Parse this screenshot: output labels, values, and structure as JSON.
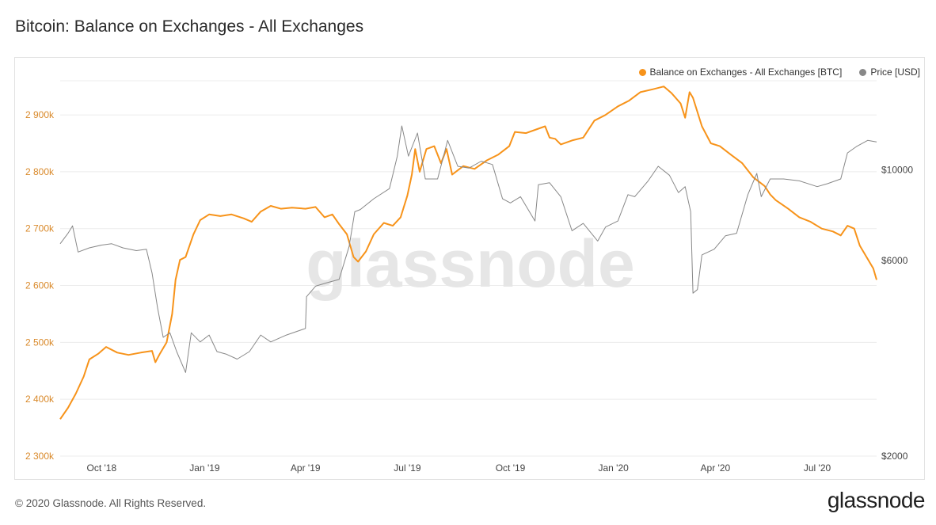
{
  "title": "Bitcoin: Balance on Exchanges - All Exchanges",
  "footer": {
    "copyright": "© 2020 Glassnode. All Rights Reserved.",
    "logo_text": "glassnode"
  },
  "watermark": "glassnode",
  "colors": {
    "balance": "#f7931a",
    "price": "#888888",
    "grid": "#ececec",
    "left_axis_text": "#d9892a",
    "right_axis_text": "#444444",
    "watermark": "#e6e6e6"
  },
  "chart_data": {
    "type": "line",
    "grid": true,
    "legend_position": "top-right",
    "x_range": [
      "2018-08-25",
      "2020-08-23"
    ],
    "x_ticks": [
      {
        "date": "2018-10-01",
        "label": "Oct '18"
      },
      {
        "date": "2019-01-01",
        "label": "Jan '19"
      },
      {
        "date": "2019-04-01",
        "label": "Apr '19"
      },
      {
        "date": "2019-07-01",
        "label": "Jul '19"
      },
      {
        "date": "2019-10-01",
        "label": "Oct '19"
      },
      {
        "date": "2020-01-01",
        "label": "Jan '20"
      },
      {
        "date": "2020-04-01",
        "label": "Apr '20"
      },
      {
        "date": "2020-07-01",
        "label": "Jul '20"
      }
    ],
    "y_left": {
      "range": [
        2300000,
        2960000
      ],
      "ticks": [
        {
          "value": 2300000,
          "label": "2 300k"
        },
        {
          "value": 2400000,
          "label": "2 400k"
        },
        {
          "value": 2500000,
          "label": "2 500k"
        },
        {
          "value": 2600000,
          "label": "2 600k"
        },
        {
          "value": 2700000,
          "label": "2 700k"
        },
        {
          "value": 2800000,
          "label": "2 800k"
        },
        {
          "value": 2900000,
          "label": "2 900k"
        }
      ]
    },
    "y_right": {
      "scale": "log",
      "range": [
        2000,
        16500
      ],
      "ticks": [
        {
          "value": 2000,
          "label": "$2000"
        },
        {
          "value": 6000,
          "label": "$6000"
        },
        {
          "value": 10000,
          "label": "$10000"
        }
      ]
    },
    "series": [
      {
        "name": "Balance on Exchanges - All Exchanges [BTC]",
        "axis": "left",
        "color": "#f7931a",
        "points": [
          [
            "2018-08-25",
            2365000
          ],
          [
            "2018-09-01",
            2385000
          ],
          [
            "2018-09-08",
            2410000
          ],
          [
            "2018-09-15",
            2440000
          ],
          [
            "2018-09-20",
            2470000
          ],
          [
            "2018-09-28",
            2480000
          ],
          [
            "2018-10-05",
            2492000
          ],
          [
            "2018-10-15",
            2482000
          ],
          [
            "2018-10-25",
            2478000
          ],
          [
            "2018-11-05",
            2482000
          ],
          [
            "2018-11-15",
            2485000
          ],
          [
            "2018-11-18",
            2465000
          ],
          [
            "2018-11-22",
            2480000
          ],
          [
            "2018-11-28",
            2500000
          ],
          [
            "2018-12-03",
            2550000
          ],
          [
            "2018-12-06",
            2610000
          ],
          [
            "2018-12-10",
            2645000
          ],
          [
            "2018-12-15",
            2650000
          ],
          [
            "2018-12-22",
            2690000
          ],
          [
            "2018-12-28",
            2715000
          ],
          [
            "2019-01-05",
            2725000
          ],
          [
            "2019-01-15",
            2722000
          ],
          [
            "2019-01-25",
            2725000
          ],
          [
            "2019-02-05",
            2718000
          ],
          [
            "2019-02-12",
            2712000
          ],
          [
            "2019-02-20",
            2730000
          ],
          [
            "2019-03-01",
            2740000
          ],
          [
            "2019-03-10",
            2735000
          ],
          [
            "2019-03-20",
            2737000
          ],
          [
            "2019-04-01",
            2735000
          ],
          [
            "2019-04-10",
            2738000
          ],
          [
            "2019-04-18",
            2720000
          ],
          [
            "2019-04-25",
            2725000
          ],
          [
            "2019-05-01",
            2708000
          ],
          [
            "2019-05-08",
            2690000
          ],
          [
            "2019-05-14",
            2650000
          ],
          [
            "2019-05-18",
            2642000
          ],
          [
            "2019-05-25",
            2660000
          ],
          [
            "2019-06-01",
            2690000
          ],
          [
            "2019-06-10",
            2710000
          ],
          [
            "2019-06-18",
            2705000
          ],
          [
            "2019-06-25",
            2720000
          ],
          [
            "2019-07-01",
            2758000
          ],
          [
            "2019-07-05",
            2795000
          ],
          [
            "2019-07-08",
            2840000
          ],
          [
            "2019-07-12",
            2800000
          ],
          [
            "2019-07-18",
            2840000
          ],
          [
            "2019-07-25",
            2845000
          ],
          [
            "2019-07-31",
            2815000
          ],
          [
            "2019-08-05",
            2840000
          ],
          [
            "2019-08-10",
            2795000
          ],
          [
            "2019-08-20",
            2810000
          ],
          [
            "2019-08-30",
            2805000
          ],
          [
            "2019-09-10",
            2820000
          ],
          [
            "2019-09-20",
            2830000
          ],
          [
            "2019-09-30",
            2845000
          ],
          [
            "2019-10-05",
            2870000
          ],
          [
            "2019-10-15",
            2868000
          ],
          [
            "2019-10-25",
            2875000
          ],
          [
            "2019-11-01",
            2880000
          ],
          [
            "2019-11-05",
            2860000
          ],
          [
            "2019-11-10",
            2858000
          ],
          [
            "2019-11-15",
            2848000
          ],
          [
            "2019-11-25",
            2855000
          ],
          [
            "2019-12-05",
            2860000
          ],
          [
            "2019-12-15",
            2890000
          ],
          [
            "2019-12-25",
            2900000
          ],
          [
            "2020-01-05",
            2915000
          ],
          [
            "2020-01-15",
            2925000
          ],
          [
            "2020-01-25",
            2940000
          ],
          [
            "2020-02-05",
            2945000
          ],
          [
            "2020-02-15",
            2950000
          ],
          [
            "2020-02-22",
            2938000
          ],
          [
            "2020-03-01",
            2920000
          ],
          [
            "2020-03-05",
            2895000
          ],
          [
            "2020-03-09",
            2940000
          ],
          [
            "2020-03-12",
            2930000
          ],
          [
            "2020-03-20",
            2880000
          ],
          [
            "2020-03-28",
            2850000
          ],
          [
            "2020-04-05",
            2845000
          ],
          [
            "2020-04-15",
            2830000
          ],
          [
            "2020-04-25",
            2815000
          ],
          [
            "2020-05-05",
            2790000
          ],
          [
            "2020-05-15",
            2775000
          ],
          [
            "2020-05-20",
            2760000
          ],
          [
            "2020-05-25",
            2750000
          ],
          [
            "2020-06-05",
            2735000
          ],
          [
            "2020-06-15",
            2720000
          ],
          [
            "2020-06-25",
            2712000
          ],
          [
            "2020-07-05",
            2700000
          ],
          [
            "2020-07-15",
            2695000
          ],
          [
            "2020-07-22",
            2688000
          ],
          [
            "2020-07-28",
            2705000
          ],
          [
            "2020-08-03",
            2700000
          ],
          [
            "2020-08-08",
            2670000
          ],
          [
            "2020-08-14",
            2650000
          ],
          [
            "2020-08-20",
            2630000
          ],
          [
            "2020-08-23",
            2610000
          ]
        ]
      },
      {
        "name": "Price [USD]",
        "axis": "right",
        "color": "#888888",
        "points": [
          [
            "2018-08-25",
            6600
          ],
          [
            "2018-09-01",
            7000
          ],
          [
            "2018-09-05",
            7300
          ],
          [
            "2018-09-10",
            6300
          ],
          [
            "2018-09-20",
            6450
          ],
          [
            "2018-10-01",
            6550
          ],
          [
            "2018-10-10",
            6600
          ],
          [
            "2018-10-20",
            6450
          ],
          [
            "2018-11-01",
            6350
          ],
          [
            "2018-11-10",
            6400
          ],
          [
            "2018-11-15",
            5600
          ],
          [
            "2018-11-20",
            4600
          ],
          [
            "2018-11-25",
            3900
          ],
          [
            "2018-12-01",
            4000
          ],
          [
            "2018-12-07",
            3600
          ],
          [
            "2018-12-15",
            3200
          ],
          [
            "2018-12-20",
            4000
          ],
          [
            "2018-12-28",
            3800
          ],
          [
            "2019-01-05",
            3950
          ],
          [
            "2019-01-12",
            3600
          ],
          [
            "2019-01-20",
            3550
          ],
          [
            "2019-01-30",
            3450
          ],
          [
            "2019-02-10",
            3600
          ],
          [
            "2019-02-20",
            3950
          ],
          [
            "2019-03-01",
            3800
          ],
          [
            "2019-03-15",
            3950
          ],
          [
            "2019-04-01",
            4100
          ],
          [
            "2019-04-02",
            4900
          ],
          [
            "2019-04-10",
            5200
          ],
          [
            "2019-04-20",
            5300
          ],
          [
            "2019-05-01",
            5400
          ],
          [
            "2019-05-10",
            6500
          ],
          [
            "2019-05-15",
            7900
          ],
          [
            "2019-05-20",
            8000
          ],
          [
            "2019-06-01",
            8500
          ],
          [
            "2019-06-15",
            9000
          ],
          [
            "2019-06-22",
            10800
          ],
          [
            "2019-06-26",
            12800
          ],
          [
            "2019-07-02",
            10800
          ],
          [
            "2019-07-10",
            12300
          ],
          [
            "2019-07-17",
            9500
          ],
          [
            "2019-07-28",
            9500
          ],
          [
            "2019-08-06",
            11800
          ],
          [
            "2019-08-15",
            10200
          ],
          [
            "2019-08-25",
            10100
          ],
          [
            "2019-09-05",
            10500
          ],
          [
            "2019-09-15",
            10300
          ],
          [
            "2019-09-24",
            8500
          ],
          [
            "2019-10-01",
            8300
          ],
          [
            "2019-10-10",
            8600
          ],
          [
            "2019-10-23",
            7500
          ],
          [
            "2019-10-26",
            9200
          ],
          [
            "2019-11-05",
            9300
          ],
          [
            "2019-11-15",
            8600
          ],
          [
            "2019-11-25",
            7100
          ],
          [
            "2019-12-05",
            7400
          ],
          [
            "2019-12-18",
            6700
          ],
          [
            "2019-12-25",
            7250
          ],
          [
            "2020-01-05",
            7500
          ],
          [
            "2020-01-14",
            8700
          ],
          [
            "2020-01-20",
            8600
          ],
          [
            "2020-02-01",
            9400
          ],
          [
            "2020-02-10",
            10200
          ],
          [
            "2020-02-20",
            9700
          ],
          [
            "2020-02-28",
            8800
          ],
          [
            "2020-03-05",
            9100
          ],
          [
            "2020-03-10",
            7900
          ],
          [
            "2020-03-12",
            5000
          ],
          [
            "2020-03-16",
            5100
          ],
          [
            "2020-03-20",
            6200
          ],
          [
            "2020-03-31",
            6400
          ],
          [
            "2020-04-10",
            6900
          ],
          [
            "2020-04-20",
            7000
          ],
          [
            "2020-04-30",
            8700
          ],
          [
            "2020-05-08",
            9800
          ],
          [
            "2020-05-12",
            8600
          ],
          [
            "2020-05-20",
            9500
          ],
          [
            "2020-06-01",
            9500
          ],
          [
            "2020-06-15",
            9400
          ],
          [
            "2020-07-01",
            9100
          ],
          [
            "2020-07-10",
            9250
          ],
          [
            "2020-07-22",
            9500
          ],
          [
            "2020-07-28",
            11000
          ],
          [
            "2020-08-05",
            11400
          ],
          [
            "2020-08-15",
            11800
          ],
          [
            "2020-08-23",
            11700
          ]
        ]
      }
    ]
  }
}
